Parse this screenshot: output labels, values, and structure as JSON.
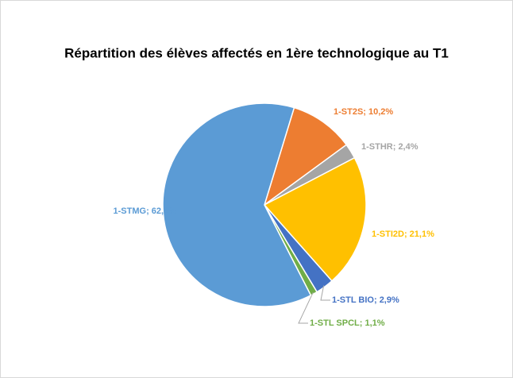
{
  "chart_data": {
    "type": "pie",
    "title": "Répartition des élèves affectés en 1ère technologique au T1",
    "values": [
      10.2,
      2.4,
      21.1,
      2.9,
      1.1,
      62.2
    ],
    "value_labels": [
      "1-ST2S; 10,2%",
      "1-STHR; 2,4%",
      "1-STI2D; 21,1%",
      "1-STL BIO; 2,9%",
      "1-STL SPCL; 1,1%",
      "1-STMG; 62,2%"
    ],
    "colors": [
      "#ed7d31",
      "#a5a5a5",
      "#ffc000",
      "#4472c4",
      "#70ad47",
      "#5b9bd5"
    ]
  }
}
